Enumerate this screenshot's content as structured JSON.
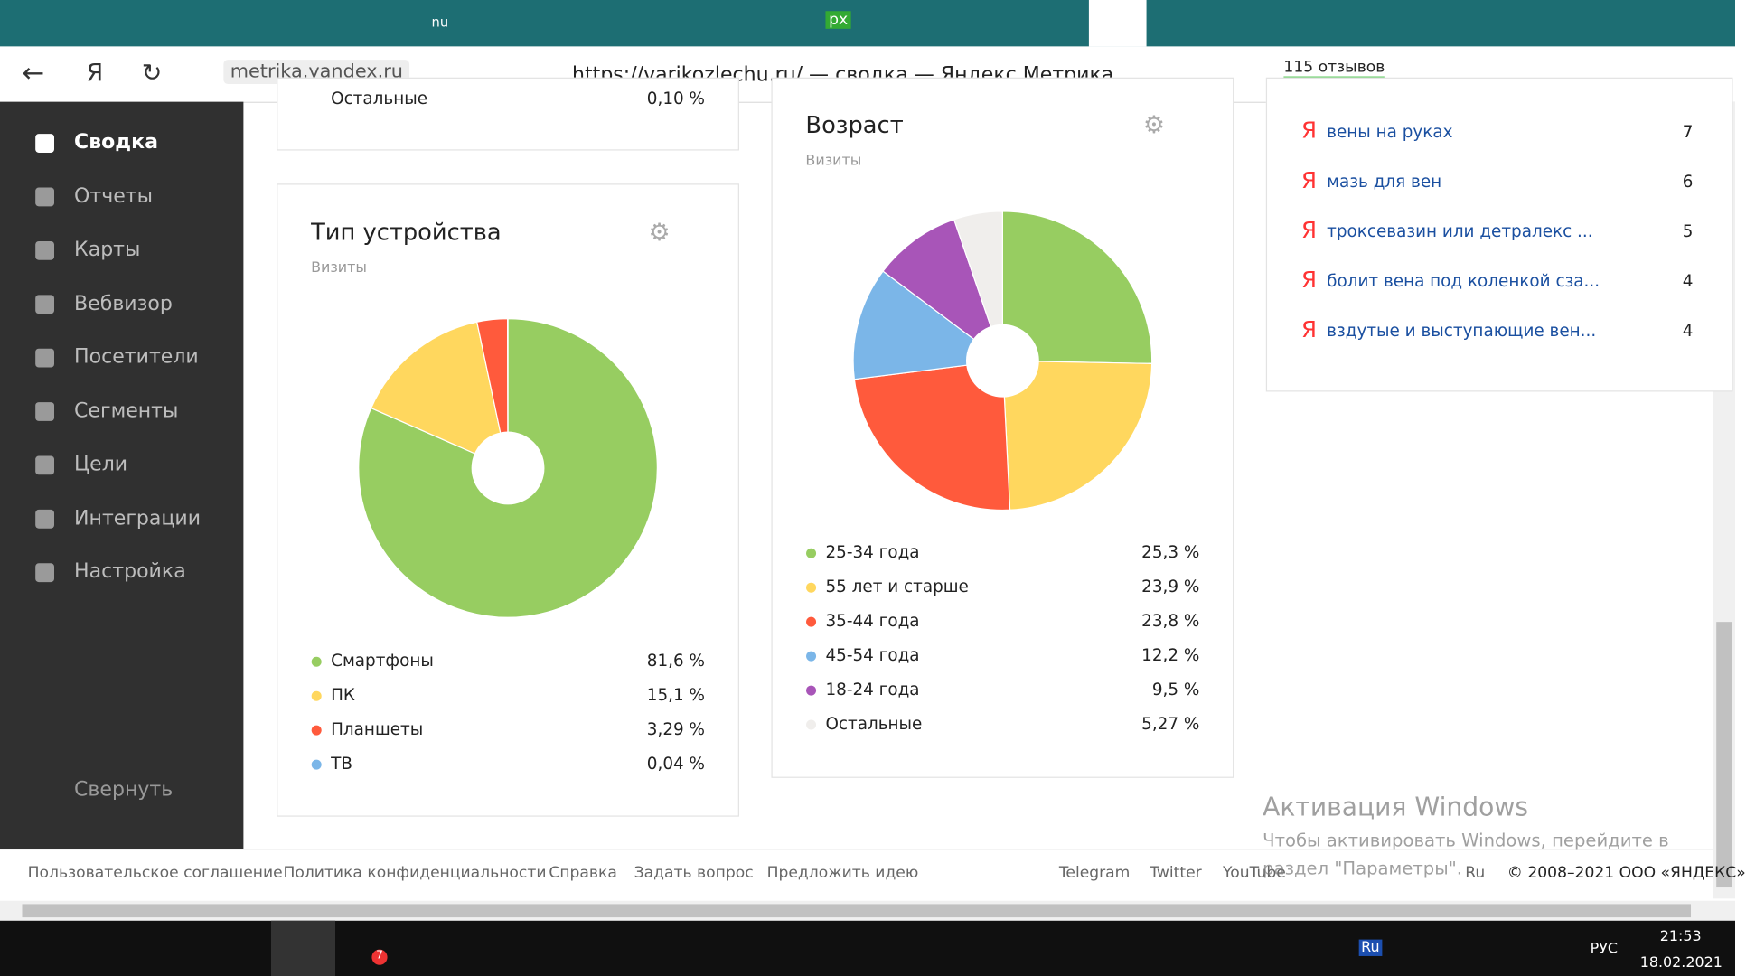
{
  "browser": {
    "tab_labels": [
      "nu",
      "px"
    ],
    "address": "metrika.yandex.ru",
    "page_title": "https://varikozlechu.ru/ — сводка — Яндекс.Метрика",
    "reviews": "115 отзывов"
  },
  "sidebar": {
    "items": [
      "Сводка",
      "Отчеты",
      "Карты",
      "Вебвизор",
      "Посетители",
      "Сегменты",
      "Цели",
      "Интеграции",
      "Настройка"
    ],
    "collapse": "Свернуть"
  },
  "top_card": {
    "label": "Остальные",
    "value": "0,10 %"
  },
  "chart_data": [
    {
      "type": "pie",
      "title": "Тип устройства",
      "subtitle": "Визиты",
      "categories": [
        "Смартфоны",
        "ПК",
        "Планшеты",
        "ТВ"
      ],
      "values": [
        81.6,
        15.1,
        3.29,
        0.04
      ],
      "value_labels": [
        "81,6 %",
        "15,1 %",
        "3,29 %",
        "0,04 %"
      ],
      "colors": [
        "#97cd61",
        "#ffd75e",
        "#ff5a3c",
        "#7bb6e8"
      ]
    },
    {
      "type": "pie",
      "title": "Возраст",
      "subtitle": "Визиты",
      "categories": [
        "25-34 года",
        "55 лет и старше",
        "35-44 года",
        "45-54 года",
        "18-24 года",
        "Остальные"
      ],
      "values": [
        25.3,
        23.9,
        23.8,
        12.2,
        9.5,
        5.27
      ],
      "value_labels": [
        "25,3 %",
        "23,9 %",
        "23,8 %",
        "12,2 %",
        "9,5 %",
        "5,27 %"
      ],
      "colors": [
        "#97cd61",
        "#ffd75e",
        "#ff5a3c",
        "#7bb6e8",
        "#a855b8",
        "#f0eeec"
      ]
    }
  ],
  "keywords": {
    "rows": [
      [
        "вены на руках",
        "7"
      ],
      [
        "мазь для вен",
        "6"
      ],
      [
        "троксевазин или детралекс ...",
        "5"
      ],
      [
        "болит вена под коленкой сза...",
        "4"
      ],
      [
        "вздутые и выступающие вен...",
        "4"
      ]
    ]
  },
  "footer": {
    "links": [
      "Пользовательское соглашение",
      "Политика конфиденциальности",
      "Справка",
      "Задать вопрос",
      "Предложить идею"
    ],
    "social": [
      "Telegram",
      "Twitter",
      "YouTube"
    ],
    "lang": "Ru",
    "copyright": "© 2008–2021 ООО «ЯНДЕКС»"
  },
  "watermark": {
    "title": "Активация Windows",
    "text": "Чтобы активировать Windows, перейдите в",
    "text2": "раздел \"Параметры\"."
  },
  "taskbar": {
    "badge": "7",
    "lang_icon": "Ru",
    "lang": "РУС",
    "time": "21:53",
    "date": "18.02.2021"
  }
}
